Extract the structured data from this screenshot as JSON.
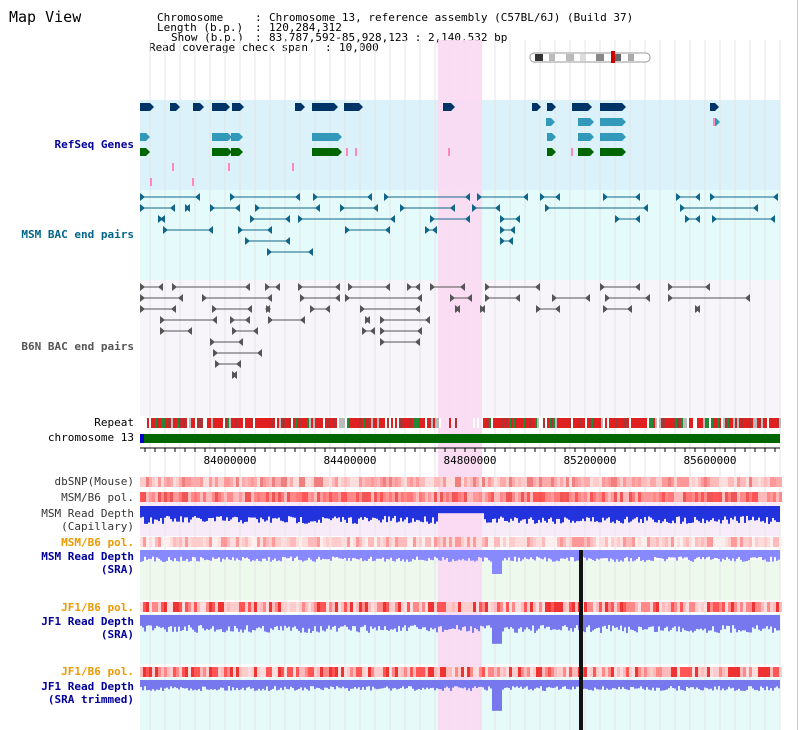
{
  "view_title": "Map View",
  "header": {
    "chromosome_key": "Chromosome",
    "chromosome_value": "Chromosome 13, reference assembly (C57BL/6J) (Build 37)",
    "length_key": "Length (b.p.)",
    "length_value": "120,284,312",
    "show_key": "Show (b.p.)",
    "show_value": "83,787,592-85,928,123 : 2,140,532 bp",
    "coverage_key": "Read coverage check span",
    "coverage_value": "10,000",
    "separator": ":"
  },
  "tracks": {
    "refseq": "RefSeq Genes",
    "msm_bac": "MSM BAC end pairs",
    "b6n_bac": "B6N BAC end pairs",
    "repeat": "Repeat",
    "chromosome": "chromosome 13",
    "dbsnp": "dbSNP(Mouse)",
    "msm_b6_pol_1": "MSM/B6 pol.",
    "msm_depth_cap_1": "MSM Read Depth",
    "msm_depth_cap_2": "(Capillary)",
    "msm_b6_pol_2": "MSM/B6 pol.",
    "msm_depth_sra_1": "MSM Read Depth",
    "msm_depth_sra_2": "(SRA)",
    "jf1_b6_pol_1": "JF1/B6 pol.",
    "jf1_depth_sra_1": "JF1 Read Depth",
    "jf1_depth_sra_2": "(SRA)",
    "jf1_b6_pol_2": "JF1/B6 pol.",
    "jf1_depth_trim_1": "JF1 Read Depth",
    "jf1_depth_trim_2": "(SRA trimmed)"
  },
  "axis_ticks": [
    "84000000",
    "84400000",
    "84800000",
    "85200000",
    "85600000"
  ],
  "colors": {
    "refseq_bg": "#dbf2fa",
    "msm_bac_bg": "#e5fafa",
    "b6n_bac_bg": "#f7f4fa",
    "highlight": "#f9d9f2",
    "msm_label": "#006688",
    "refseq_label": "#000099",
    "b6n_label": "#555555",
    "pol_orange": "#ee9900",
    "depth_blue": "#3333dd",
    "depth_light": "#8888ff",
    "chromosome_green": "#006600"
  }
}
